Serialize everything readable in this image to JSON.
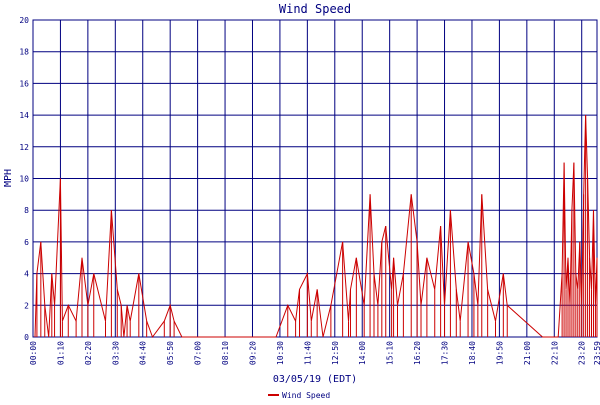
{
  "chart_data": {
    "type": "line",
    "title": "Wind Speed",
    "xlabel": "03/05/19 (EDT)",
    "ylabel": "MPH",
    "ylim": [
      0,
      20
    ],
    "yticks": [
      0,
      2,
      4,
      6,
      8,
      10,
      12,
      14,
      16,
      18,
      20
    ],
    "x_ticks": [
      "00:00",
      "01:10",
      "02:20",
      "03:30",
      "04:40",
      "05:50",
      "07:00",
      "08:10",
      "09:20",
      "10:30",
      "11:40",
      "12:50",
      "14:00",
      "15:10",
      "16:20",
      "17:30",
      "18:40",
      "19:50",
      "21:00",
      "22:10",
      "23:20",
      "23:59"
    ],
    "x_range_minutes": [
      0,
      1439
    ],
    "grid": true,
    "legend_position": "bottom-center",
    "series": [
      {
        "name": "Wind Speed",
        "color": "#cc0000",
        "x_minutes": [
          5,
          10,
          20,
          30,
          40,
          48,
          55,
          70,
          75,
          90,
          110,
          125,
          140,
          155,
          185,
          200,
          215,
          225,
          232,
          240,
          248,
          270,
          290,
          305,
          335,
          350,
          360,
          380,
          480,
          560,
          620,
          650,
          670,
          680,
          700,
          710,
          725,
          740,
          760,
          790,
          805,
          810,
          825,
          845,
          860,
          870,
          880,
          890,
          900,
          915,
          920,
          930,
          945,
          965,
          980,
          990,
          1005,
          1025,
          1040,
          1050,
          1065,
          1080,
          1090,
          1110,
          1125,
          1135,
          1145,
          1160,
          1180,
          1200,
          1210,
          1300,
          1325,
          1330,
          1340,
          1350,
          1355,
          1360,
          1365,
          1370,
          1375,
          1380,
          1385,
          1390,
          1395,
          1400,
          1405,
          1410,
          1415,
          1420,
          1425,
          1430,
          1435,
          1439
        ],
        "values": [
          0,
          4,
          6,
          2,
          0,
          4,
          2,
          10,
          1,
          2,
          1,
          5,
          2,
          4,
          1,
          8,
          3,
          2,
          0,
          2,
          1,
          4,
          1,
          0,
          1,
          2,
          1,
          0,
          0,
          0,
          0,
          2,
          1,
          3,
          4,
          1,
          3,
          0,
          2,
          6,
          1,
          3,
          5,
          2,
          9,
          4,
          2,
          6,
          7,
          3,
          5,
          2,
          4,
          9,
          6,
          2,
          5,
          3,
          7,
          2,
          8,
          3,
          1,
          6,
          4,
          2,
          9,
          3,
          1,
          4,
          2,
          0,
          0,
          0,
          0,
          4,
          11,
          3,
          5,
          2,
          8,
          11,
          4,
          3,
          6,
          2,
          9,
          14,
          10,
          5,
          3,
          8,
          2,
          5
        ]
      }
    ]
  }
}
